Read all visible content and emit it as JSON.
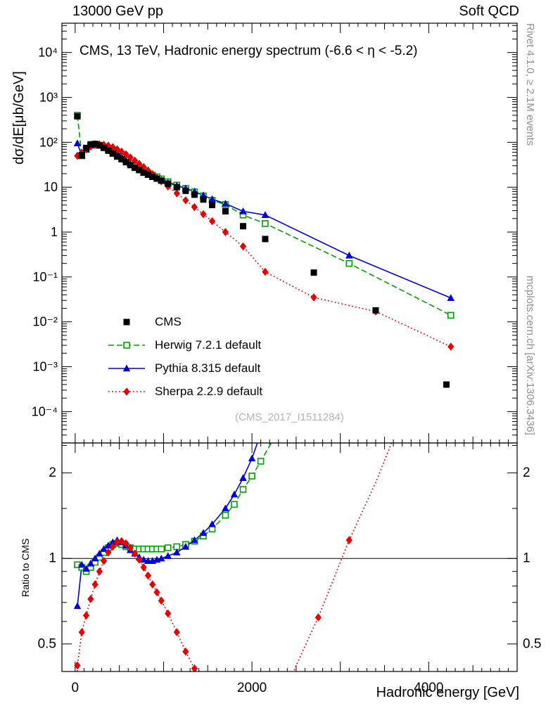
{
  "header": {
    "left": "13000 GeV pp",
    "right": "Soft QCD"
  },
  "side_notes": {
    "right_top": "Rivet 4.1.0, ≥ 2.1M events",
    "right_bottom": "mcplots.cern.ch [arXiv:1306.3436]"
  },
  "watermark": "(CMS_2017_I1511284)",
  "chart_data": {
    "type": "line",
    "title": "CMS, 13 TeV, Hadronic energy spectrum (-6.6 < η < -5.2)",
    "xlabel": "Hadronic energy [GeV]",
    "ylabel_main": "dσ/dE[μb/GeV]",
    "ylabel_ratio": "Ratio to CMS",
    "legend": {
      "position": "inside-left-middle"
    },
    "axes": {
      "x": {
        "min": -150,
        "max": 5000,
        "minor_tick_step": 100,
        "medium_tick_step": 500,
        "major_tick_step": 1000,
        "labeled_ticks": [
          {
            "value": 0,
            "label": "0"
          },
          {
            "value": 2000,
            "label": "2000"
          },
          {
            "value": 4000,
            "label": "4000"
          }
        ]
      },
      "y_main": {
        "scale": "log",
        "min": 2e-05,
        "max": 45000,
        "decade_labels": [
          {
            "exp": 4,
            "label": "10⁴"
          },
          {
            "exp": 3,
            "label": "10³"
          },
          {
            "exp": 2,
            "label": "10²"
          },
          {
            "exp": 1,
            "label": "10"
          },
          {
            "exp": 0,
            "label": "1"
          },
          {
            "exp": -1,
            "label": "10⁻¹"
          },
          {
            "exp": -2,
            "label": "10⁻²"
          },
          {
            "exp": -3,
            "label": "10⁻³"
          },
          {
            "exp": -4,
            "label": "10⁻⁴"
          }
        ]
      },
      "y_ratio": {
        "scale": "log",
        "min": 0.4,
        "max": 2.55,
        "reference_line": 1,
        "labeled_ticks": [
          {
            "value": 2,
            "label": "2"
          },
          {
            "value": 1,
            "label": "1"
          },
          {
            "value": 0.5,
            "label": "0.5"
          }
        ],
        "minor_ticks": [
          0.6,
          0.7,
          0.8,
          0.9,
          1.5,
          2.5
        ]
      }
    },
    "series": [
      {
        "name": "cms-data",
        "label": "CMS",
        "color": "#000000",
        "marker": "square",
        "line": "none",
        "main_points": [
          [
            25,
            380
          ],
          [
            75,
            52
          ],
          [
            125,
            75
          ],
          [
            175,
            90
          ],
          [
            225,
            92
          ],
          [
            275,
            85
          ],
          [
            325,
            75
          ],
          [
            375,
            65
          ],
          [
            425,
            56
          ],
          [
            475,
            48
          ],
          [
            525,
            42
          ],
          [
            575,
            36
          ],
          [
            625,
            31
          ],
          [
            675,
            27
          ],
          [
            725,
            24
          ],
          [
            775,
            21
          ],
          [
            825,
            19
          ],
          [
            875,
            17
          ],
          [
            925,
            15.5
          ],
          [
            975,
            14
          ],
          [
            1050,
            12
          ],
          [
            1150,
            10
          ],
          [
            1250,
            8.3
          ],
          [
            1350,
            6.8
          ],
          [
            1450,
            5.3
          ],
          [
            1550,
            4
          ],
          [
            1700,
            2.9
          ],
          [
            1900,
            1.35
          ],
          [
            2150,
            0.7
          ],
          [
            2700,
            0.125
          ],
          [
            3400,
            0.018
          ],
          [
            4200,
            0.0004
          ]
        ],
        "ratio_points": []
      },
      {
        "name": "herwig",
        "label": "Herwig 7.2.1 default",
        "color": "#00a000",
        "marker": "square-open",
        "line": "dashed",
        "main_points": [
          [
            25,
            400
          ],
          [
            75,
            50
          ],
          [
            125,
            70
          ],
          [
            175,
            86
          ],
          [
            225,
            90
          ],
          [
            275,
            86
          ],
          [
            325,
            78
          ],
          [
            375,
            69
          ],
          [
            425,
            61
          ],
          [
            475,
            53
          ],
          [
            525,
            46
          ],
          [
            575,
            40
          ],
          [
            625,
            34
          ],
          [
            675,
            29.5
          ],
          [
            725,
            26
          ],
          [
            775,
            23
          ],
          [
            825,
            20.5
          ],
          [
            875,
            18.5
          ],
          [
            925,
            17
          ],
          [
            975,
            15.3
          ],
          [
            1050,
            13.2
          ],
          [
            1150,
            11.1
          ],
          [
            1250,
            9.4
          ],
          [
            1350,
            7.9
          ],
          [
            1450,
            6.4
          ],
          [
            1550,
            5.1
          ],
          [
            1700,
            4.1
          ],
          [
            1900,
            2.4
          ],
          [
            2150,
            1.55
          ],
          [
            3100,
            0.2
          ],
          [
            4250,
            0.014
          ]
        ],
        "ratio_points": [
          [
            25,
            0.95,
            1
          ],
          [
            75,
            0.93,
            1
          ],
          [
            125,
            0.9,
            1
          ],
          [
            175,
            0.93,
            1
          ],
          [
            225,
            0.97,
            1
          ],
          [
            275,
            1.01,
            1
          ],
          [
            325,
            1.05,
            1
          ],
          [
            375,
            1.09,
            1
          ],
          [
            425,
            1.12,
            1
          ],
          [
            475,
            1.13,
            1
          ],
          [
            525,
            1.12,
            1
          ],
          [
            575,
            1.1,
            1
          ],
          [
            625,
            1.09,
            1
          ],
          [
            675,
            1.08,
            1
          ],
          [
            725,
            1.08,
            1
          ],
          [
            775,
            1.08,
            1
          ],
          [
            825,
            1.08,
            1
          ],
          [
            875,
            1.08,
            1
          ],
          [
            925,
            1.08,
            1
          ],
          [
            975,
            1.08,
            1
          ],
          [
            1050,
            1.09,
            1
          ],
          [
            1150,
            1.1,
            1
          ],
          [
            1250,
            1.12,
            1
          ],
          [
            1350,
            1.15,
            1
          ],
          [
            1450,
            1.2,
            1
          ],
          [
            1550,
            1.27,
            1
          ],
          [
            1700,
            1.42,
            1
          ],
          [
            1800,
            1.55,
            1
          ],
          [
            1900,
            1.75,
            1
          ],
          [
            2000,
            1.95,
            1
          ],
          [
            2100,
            2.2,
            1
          ],
          [
            2250,
            2.65,
            0
          ]
        ]
      },
      {
        "name": "pythia",
        "label": "Pythia 8.315 default",
        "color": "#0000dd",
        "marker": "triangle",
        "line": "solid",
        "main_points": [
          [
            25,
            95
          ],
          [
            75,
            50
          ],
          [
            125,
            69
          ],
          [
            175,
            86
          ],
          [
            225,
            92
          ],
          [
            275,
            89
          ],
          [
            325,
            81
          ],
          [
            375,
            72
          ],
          [
            425,
            64
          ],
          [
            475,
            56
          ],
          [
            525,
            48
          ],
          [
            575,
            40
          ],
          [
            625,
            33.5
          ],
          [
            675,
            28
          ],
          [
            725,
            24.5
          ],
          [
            775,
            21
          ],
          [
            825,
            18.8
          ],
          [
            875,
            16.8
          ],
          [
            925,
            15.7
          ],
          [
            975,
            14.3
          ],
          [
            1050,
            12.5
          ],
          [
            1150,
            10.8
          ],
          [
            1250,
            9.4
          ],
          [
            1350,
            8
          ],
          [
            1450,
            6.6
          ],
          [
            1550,
            5.4
          ],
          [
            1700,
            4.3
          ],
          [
            1900,
            2.9
          ],
          [
            2150,
            2.4
          ],
          [
            3100,
            0.3
          ],
          [
            4250,
            0.034
          ]
        ],
        "ratio_points": [
          [
            25,
            0.68,
            1
          ],
          [
            75,
            0.95,
            1
          ],
          [
            125,
            0.92,
            1
          ],
          [
            175,
            0.96,
            1
          ],
          [
            225,
            1,
            1
          ],
          [
            275,
            1.04,
            1
          ],
          [
            325,
            1.08,
            1
          ],
          [
            375,
            1.11,
            1
          ],
          [
            425,
            1.14,
            1
          ],
          [
            475,
            1.16,
            1
          ],
          [
            525,
            1.14,
            1
          ],
          [
            575,
            1.11,
            1
          ],
          [
            625,
            1.07,
            1
          ],
          [
            675,
            1.04,
            1
          ],
          [
            725,
            1.01,
            1
          ],
          [
            775,
            0.99,
            1
          ],
          [
            825,
            0.98,
            1
          ],
          [
            875,
            0.98,
            1
          ],
          [
            925,
            0.99,
            1
          ],
          [
            975,
            1,
            1
          ],
          [
            1050,
            1.02,
            1
          ],
          [
            1150,
            1.05,
            1
          ],
          [
            1250,
            1.1,
            1
          ],
          [
            1350,
            1.16,
            1
          ],
          [
            1450,
            1.23,
            1
          ],
          [
            1550,
            1.32,
            1
          ],
          [
            1700,
            1.5,
            1
          ],
          [
            1800,
            1.68,
            1
          ],
          [
            1900,
            1.92,
            1
          ],
          [
            2000,
            2.25,
            1
          ],
          [
            2080,
            2.65,
            0
          ]
        ]
      },
      {
        "name": "sherpa",
        "label": "Sherpa 2.2.9 default",
        "color": "#e60000",
        "marker": "diamond",
        "line": "dotted",
        "main_points": [
          [
            25,
            50
          ],
          [
            75,
            58
          ],
          [
            125,
            70
          ],
          [
            175,
            80
          ],
          [
            225,
            87
          ],
          [
            275,
            90
          ],
          [
            325,
            88
          ],
          [
            375,
            84
          ],
          [
            425,
            78
          ],
          [
            475,
            70
          ],
          [
            525,
            62
          ],
          [
            575,
            54
          ],
          [
            625,
            46
          ],
          [
            675,
            39
          ],
          [
            725,
            33
          ],
          [
            775,
            28
          ],
          [
            825,
            23.5
          ],
          [
            875,
            19.5
          ],
          [
            925,
            16.2
          ],
          [
            975,
            13.5
          ],
          [
            1050,
            10.4
          ],
          [
            1150,
            7.3
          ],
          [
            1250,
            5.1
          ],
          [
            1350,
            3.6
          ],
          [
            1450,
            2.5
          ],
          [
            1550,
            1.75
          ],
          [
            1700,
            1
          ],
          [
            1900,
            0.48
          ],
          [
            2150,
            0.13
          ],
          [
            2700,
            0.035
          ],
          [
            3400,
            0.017
          ],
          [
            4250,
            0.0028
          ]
        ],
        "ratio_points": [
          [
            20,
            0.31,
            0
          ],
          [
            25,
            0.42,
            1
          ],
          [
            75,
            0.55,
            1
          ],
          [
            125,
            0.63,
            1
          ],
          [
            175,
            0.72,
            1
          ],
          [
            225,
            0.81,
            1
          ],
          [
            275,
            0.9,
            1
          ],
          [
            325,
            0.98,
            1
          ],
          [
            375,
            1.05,
            1
          ],
          [
            425,
            1.1,
            1
          ],
          [
            475,
            1.14,
            1
          ],
          [
            525,
            1.15,
            1
          ],
          [
            575,
            1.13,
            1
          ],
          [
            625,
            1.09,
            1
          ],
          [
            675,
            1.04,
            1
          ],
          [
            725,
            0.99,
            1
          ],
          [
            775,
            0.93,
            1
          ],
          [
            825,
            0.87,
            1
          ],
          [
            875,
            0.81,
            1
          ],
          [
            925,
            0.76,
            1
          ],
          [
            975,
            0.71,
            1
          ],
          [
            1050,
            0.64,
            1
          ],
          [
            1150,
            0.55,
            1
          ],
          [
            1250,
            0.47,
            1
          ],
          [
            1350,
            0.41,
            1
          ],
          [
            1440,
            0.36,
            1
          ],
          [
            1520,
            0.31,
            0
          ],
          null,
          [
            2330,
            0.31,
            0
          ],
          [
            2500,
            0.42,
            0
          ],
          [
            2750,
            0.62,
            1
          ],
          [
            3100,
            1.16,
            1
          ],
          [
            3400,
            1.85,
            0
          ],
          [
            3600,
            2.65,
            0
          ]
        ]
      }
    ]
  }
}
